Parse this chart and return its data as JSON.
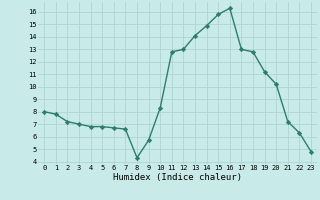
{
  "x": [
    0,
    1,
    2,
    3,
    4,
    5,
    6,
    7,
    8,
    9,
    10,
    11,
    12,
    13,
    14,
    15,
    16,
    17,
    18,
    19,
    20,
    21,
    22,
    23
  ],
  "y": [
    8.0,
    7.8,
    7.2,
    7.0,
    6.8,
    6.8,
    6.7,
    6.6,
    4.3,
    5.7,
    8.3,
    12.8,
    13.0,
    14.1,
    14.9,
    15.8,
    16.3,
    13.0,
    12.8,
    11.2,
    10.2,
    7.2,
    6.3,
    4.8
  ],
  "xlabel": "Humidex (Indice chaleur)",
  "ylim": [
    3.8,
    16.8
  ],
  "xlim": [
    -0.5,
    23.5
  ],
  "line_color": "#2e7d6e",
  "marker": "D",
  "marker_size": 2.2,
  "bg_color": "#c8eae8",
  "grid_color": "#b0d4d0",
  "yticks": [
    4,
    5,
    6,
    7,
    8,
    9,
    10,
    11,
    12,
    13,
    14,
    15,
    16
  ],
  "xticks": [
    0,
    1,
    2,
    3,
    4,
    5,
    6,
    7,
    8,
    9,
    10,
    11,
    12,
    13,
    14,
    15,
    16,
    17,
    18,
    19,
    20,
    21,
    22,
    23
  ],
  "tick_fontsize": 5.0,
  "xlabel_fontsize": 6.5,
  "linewidth": 1.0
}
